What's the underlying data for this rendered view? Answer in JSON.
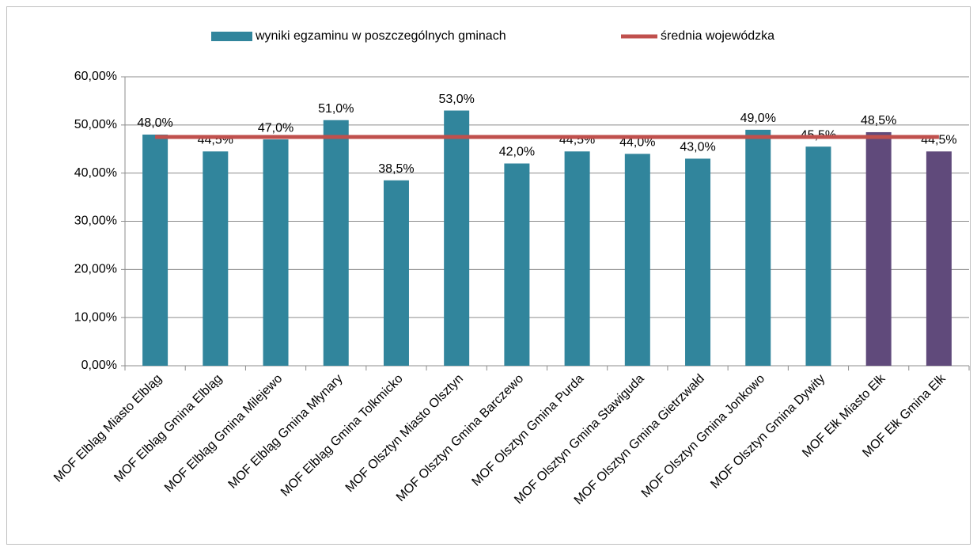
{
  "chart_data": {
    "type": "bar",
    "categories": [
      "MOF Elbląg Miasto Elbląg",
      "MOF Elbląg Gmina Elbląg",
      "MOF Elbląg Gmina Milejewo",
      "MOF Elbląg Gmina Młynary",
      "MOF Elbląg Gmina Tolkmicko",
      "MOF Olsztyn Miasto Olsztyn",
      "MOF Olsztyn Gmina Barczewo",
      "MOF Olsztyn Gmina Purda",
      "MOF Olsztyn Gmina Stawiguda",
      "MOF Olsztyn Gmina Gietrzwałd",
      "MOF Olsztyn Gmina Jonkowo",
      "MOF Olsztyn Gmina Dywity",
      "MOF Ełk Miasto Ełk",
      "MOF Ełk Gmina Ełk"
    ],
    "series": [
      {
        "name": "wyniki egzaminu w poszczególnych gminach",
        "type": "bar",
        "color": "#31859c",
        "colors": [
          "#31859c",
          "#31859c",
          "#31859c",
          "#31859c",
          "#31859c",
          "#31859c",
          "#31859c",
          "#31859c",
          "#31859c",
          "#31859c",
          "#31859c",
          "#31859c",
          "#604a7b",
          "#604a7b"
        ],
        "values": [
          48,
          44.5,
          47,
          51,
          38.5,
          53,
          42,
          44.5,
          44,
          43,
          49,
          45.5,
          48.5,
          44.5
        ],
        "value_labels": [
          "48,0%",
          "44,5%",
          "47,0%",
          "51,0%",
          "38,5%",
          "53,0%",
          "42,0%",
          "44,5%",
          "44,0%",
          "43,0%",
          "49,0%",
          "45,5%",
          "48,5%",
          "44,5%"
        ]
      },
      {
        "name": "średnia wojewódzka",
        "type": "line",
        "color": "#c0504d",
        "values": [
          47.5,
          47.5,
          47.5,
          47.5,
          47.5,
          47.5,
          47.5,
          47.5,
          47.5,
          47.5,
          47.5,
          47.5,
          47.5,
          47.5
        ]
      }
    ],
    "ylim": [
      0,
      60
    ],
    "yticks": [
      {
        "value": 0,
        "label": "0,00%"
      },
      {
        "value": 10,
        "label": "10,00%"
      },
      {
        "value": 20,
        "label": "20,00%"
      },
      {
        "value": 30,
        "label": "30,00%"
      },
      {
        "value": 40,
        "label": "40,00%"
      },
      {
        "value": 50,
        "label": "50,00%"
      },
      {
        "value": 60,
        "label": "60,00%"
      }
    ],
    "grid": true,
    "legend": "top"
  }
}
